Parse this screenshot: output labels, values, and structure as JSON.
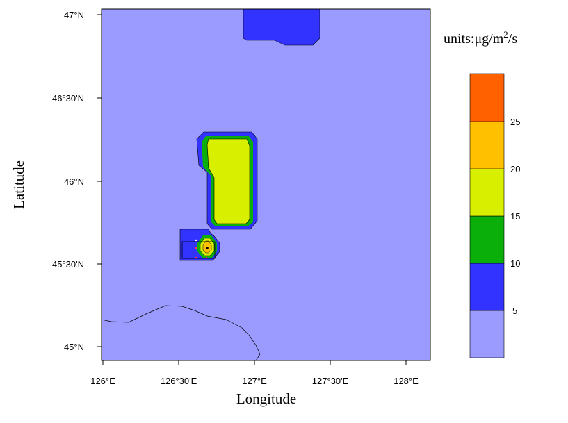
{
  "map": {
    "y_ticks": [
      "47°N",
      "46°30'N",
      "46°N",
      "45°30'N",
      "45°N"
    ],
    "x_ticks": [
      "126°E",
      "126°30'E",
      "127°E",
      "127°30'E",
      "128°E"
    ],
    "xlabel": "Longitude",
    "ylabel": "Latitude"
  },
  "colorbar": {
    "units_prefix": "units:",
    "units_main": "μg/m",
    "units_sup": "2",
    "units_suffix": "/s",
    "levels": [
      "5",
      "10",
      "15",
      "20",
      "25"
    ],
    "colors": [
      "#9a9aff",
      "#3333ff",
      "#0aaf0a",
      "#d8f000",
      "#ffc000",
      "#ff6000"
    ]
  }
}
